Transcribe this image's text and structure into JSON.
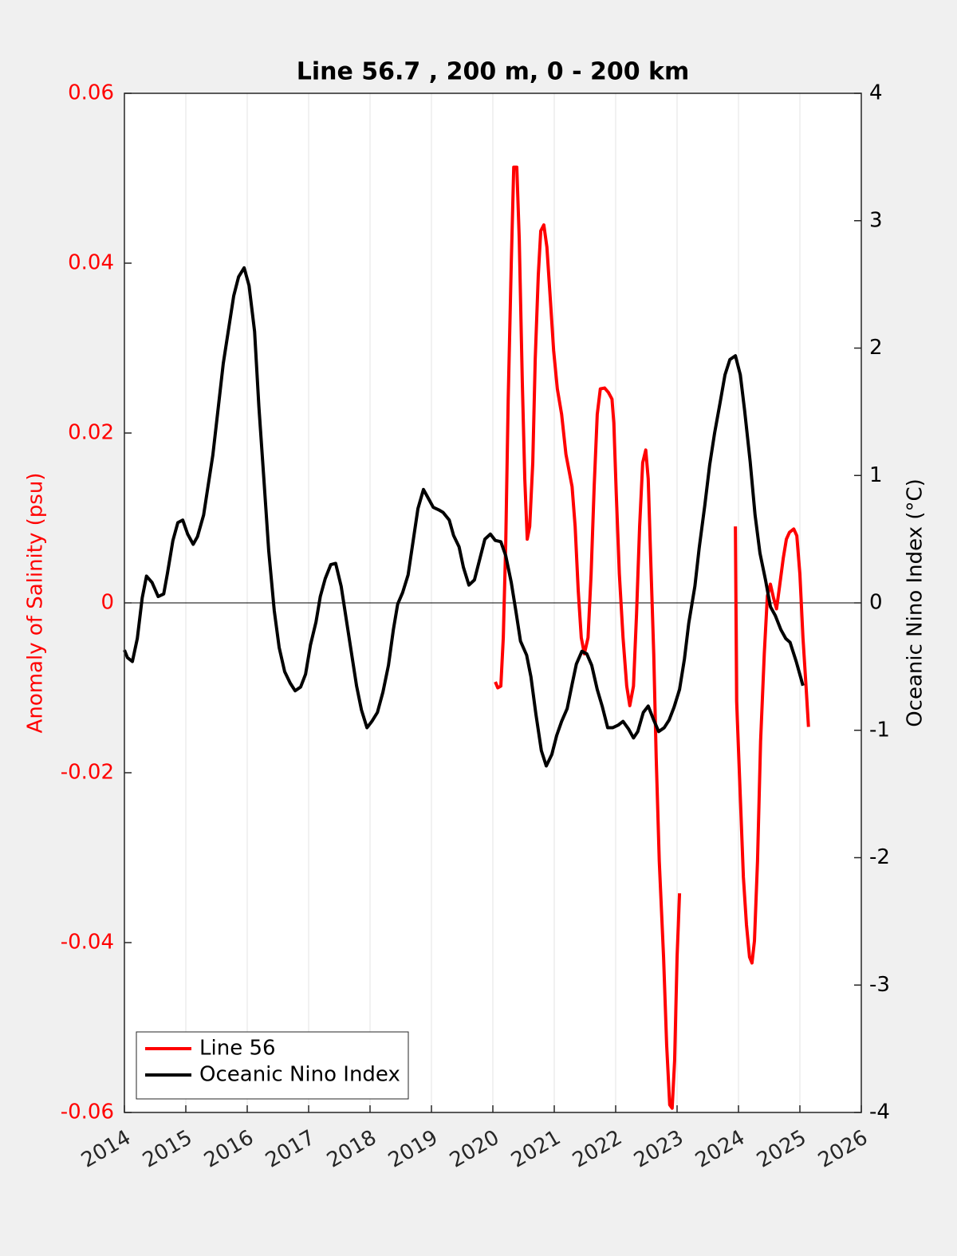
{
  "chart_data": {
    "type": "line",
    "title": "Line 56.7 , 200 m, 0 - 200 km",
    "ylabel": "Anomaly of Salinity (psu)",
    "y2label": "Oceanic Nino Index (°C)",
    "xlim": [
      2014,
      2026
    ],
    "xticks": [
      2014,
      2015,
      2016,
      2017,
      2018,
      2019,
      2020,
      2021,
      2022,
      2023,
      2024,
      2025,
      2026
    ],
    "ylim": [
      -0.06,
      0.06
    ],
    "yticks": [
      -0.06,
      -0.04,
      -0.02,
      0,
      0.02,
      0.04,
      0.06
    ],
    "y2lim": [
      -4,
      4
    ],
    "y2ticks": [
      -4,
      -3,
      -2,
      -1,
      0,
      1,
      2,
      3,
      4
    ],
    "y_color": "#ff0000",
    "y2_color": "#000000",
    "xgrid": true,
    "zero_line": true,
    "legend": "lower left",
    "series": [
      {
        "name": "Line 56",
        "color": "#ff0000",
        "x": [
          2020.04,
          2020.08,
          2020.13,
          2020.17,
          2020.21,
          2020.25,
          2020.3,
          2020.34,
          2020.39,
          2020.43,
          2020.48,
          2020.52,
          2020.56,
          2020.6,
          2020.65,
          2020.69,
          2020.74,
          2020.78,
          2020.83,
          2020.88,
          2020.94,
          2020.99,
          2021.05,
          2021.12,
          2021.19,
          2021.29,
          2021.34,
          2021.39,
          2021.44,
          2021.49,
          2021.55,
          2021.6,
          2021.65,
          2021.7,
          2021.75,
          2021.82,
          2021.88,
          2021.94,
          2021.97,
          2022.01,
          2022.06,
          2022.12,
          2022.18,
          2022.23,
          2022.29,
          2022.34,
          2022.39,
          2022.44,
          2022.49,
          2022.53,
          2022.57,
          2022.62,
          2022.66,
          2022.71,
          2022.78,
          2022.83,
          2022.88,
          2022.92,
          2022.96,
          2023.0,
          2023.04,
          2023.5,
          2023.95,
          2023.97,
          2024.03,
          2024.08,
          2024.13,
          2024.18,
          2024.22,
          2024.26,
          2024.31,
          2024.36,
          2024.42,
          2024.47,
          2024.52,
          2024.57,
          2024.62,
          2024.67,
          2024.73,
          2024.78,
          2024.83,
          2024.9,
          2024.95,
          2025.0,
          2025.05,
          2025.1,
          2025.14
        ],
        "values": [
          -0.0093,
          -0.01,
          -0.0098,
          -0.0041,
          0.0071,
          0.024,
          0.04,
          0.0513,
          0.0513,
          0.0428,
          0.0259,
          0.0146,
          0.0075,
          0.009,
          0.0165,
          0.0287,
          0.0386,
          0.0438,
          0.0445,
          0.0419,
          0.0353,
          0.0297,
          0.0252,
          0.0222,
          0.0175,
          0.0137,
          0.009,
          0.0015,
          -0.0041,
          -0.006,
          -0.0041,
          0.0034,
          0.0137,
          0.0222,
          0.0252,
          0.0253,
          0.0248,
          0.024,
          0.0212,
          0.0128,
          0.0034,
          -0.0041,
          -0.0098,
          -0.0121,
          -0.0098,
          -0.0013,
          0.009,
          0.0165,
          0.018,
          0.0146,
          0.0053,
          -0.006,
          -0.0182,
          -0.0304,
          -0.0417,
          -0.052,
          -0.0591,
          -0.0595,
          -0.0539,
          -0.0417,
          -0.0342,
          null,
          0.009,
          -0.0116,
          -0.0229,
          -0.0323,
          -0.0379,
          -0.0417,
          -0.0424,
          -0.0398,
          -0.0304,
          -0.0163,
          -0.006,
          0.0008,
          0.0022,
          0.0006,
          -0.0007,
          0.002,
          0.0053,
          0.0075,
          0.0083,
          0.0087,
          0.0079,
          0.0034,
          -0.0041,
          -0.0098,
          -0.0146
        ]
      },
      {
        "name": "Oceanic Nino Index",
        "color": "#000000",
        "axis": "y2",
        "x": [
          2014.0,
          2014.05,
          2014.13,
          2014.21,
          2014.29,
          2014.36,
          2014.45,
          2014.55,
          2014.64,
          2014.7,
          2014.79,
          2014.87,
          2014.95,
          2015.03,
          2015.12,
          2015.19,
          2015.29,
          2015.36,
          2015.44,
          2015.53,
          2015.61,
          2015.7,
          2015.78,
          2015.86,
          2015.95,
          2016.03,
          2016.12,
          2016.19,
          2016.27,
          2016.35,
          2016.44,
          2016.52,
          2016.61,
          2016.7,
          2016.78,
          2016.87,
          2016.95,
          2017.03,
          2017.12,
          2017.19,
          2017.27,
          2017.36,
          2017.44,
          2017.53,
          2017.61,
          2017.69,
          2017.78,
          2017.86,
          2017.95,
          2018.03,
          2018.12,
          2018.21,
          2018.3,
          2018.38,
          2018.45,
          2018.53,
          2018.62,
          2018.7,
          2018.78,
          2018.87,
          2018.95,
          2019.03,
          2019.12,
          2019.19,
          2019.29,
          2019.36,
          2019.45,
          2019.52,
          2019.61,
          2019.7,
          2019.79,
          2019.87,
          2019.96,
          2020.04,
          2020.13,
          2020.21,
          2020.3,
          2020.38,
          2020.45,
          2020.55,
          2020.62,
          2020.7,
          2020.79,
          2020.87,
          2020.96,
          2021.04,
          2021.12,
          2021.21,
          2021.29,
          2021.36,
          2021.45,
          2021.53,
          2021.61,
          2021.7,
          2021.78,
          2021.87,
          2021.95,
          2022.04,
          2022.12,
          2022.21,
          2022.29,
          2022.36,
          2022.45,
          2022.53,
          2022.62,
          2022.7,
          2022.79,
          2022.87,
          2022.95,
          2023.04,
          2023.12,
          2023.19,
          2023.29,
          2023.36,
          2023.45,
          2023.53,
          2023.61,
          2023.7,
          2023.78,
          2023.86,
          2023.95,
          2024.03,
          2024.1,
          2024.19,
          2024.27,
          2024.35,
          2024.44,
          2024.52,
          2024.6,
          2024.69,
          2024.77,
          2024.84,
          2024.94,
          2025.01,
          2025.05
        ],
        "values": [
          -0.37,
          -0.43,
          -0.46,
          -0.28,
          0.04,
          0.21,
          0.16,
          0.05,
          0.07,
          0.23,
          0.49,
          0.63,
          0.65,
          0.54,
          0.46,
          0.52,
          0.69,
          0.91,
          1.16,
          1.54,
          1.88,
          2.16,
          2.41,
          2.56,
          2.63,
          2.49,
          2.13,
          1.54,
          0.98,
          0.41,
          -0.06,
          -0.35,
          -0.54,
          -0.63,
          -0.69,
          -0.66,
          -0.56,
          -0.33,
          -0.15,
          0.05,
          0.19,
          0.3,
          0.31,
          0.13,
          -0.12,
          -0.37,
          -0.65,
          -0.84,
          -0.98,
          -0.93,
          -0.86,
          -0.7,
          -0.49,
          -0.21,
          -0.01,
          0.08,
          0.22,
          0.48,
          0.74,
          0.89,
          0.82,
          0.75,
          0.73,
          0.71,
          0.65,
          0.53,
          0.44,
          0.28,
          0.14,
          0.18,
          0.35,
          0.5,
          0.54,
          0.49,
          0.48,
          0.37,
          0.16,
          -0.08,
          -0.3,
          -0.41,
          -0.58,
          -0.87,
          -1.16,
          -1.28,
          -1.19,
          -1.04,
          -0.93,
          -0.83,
          -0.64,
          -0.48,
          -0.38,
          -0.4,
          -0.49,
          -0.68,
          -0.81,
          -0.98,
          -0.98,
          -0.96,
          -0.93,
          -0.99,
          -1.06,
          -1.01,
          -0.86,
          -0.81,
          -0.92,
          -1.01,
          -0.98,
          -0.92,
          -0.82,
          -0.68,
          -0.44,
          -0.16,
          0.13,
          0.43,
          0.76,
          1.08,
          1.33,
          1.57,
          1.79,
          1.91,
          1.94,
          1.79,
          1.51,
          1.11,
          0.69,
          0.39,
          0.18,
          -0.03,
          -0.1,
          -0.21,
          -0.28,
          -0.31,
          -0.46,
          -0.58,
          -0.65
        ]
      }
    ]
  }
}
